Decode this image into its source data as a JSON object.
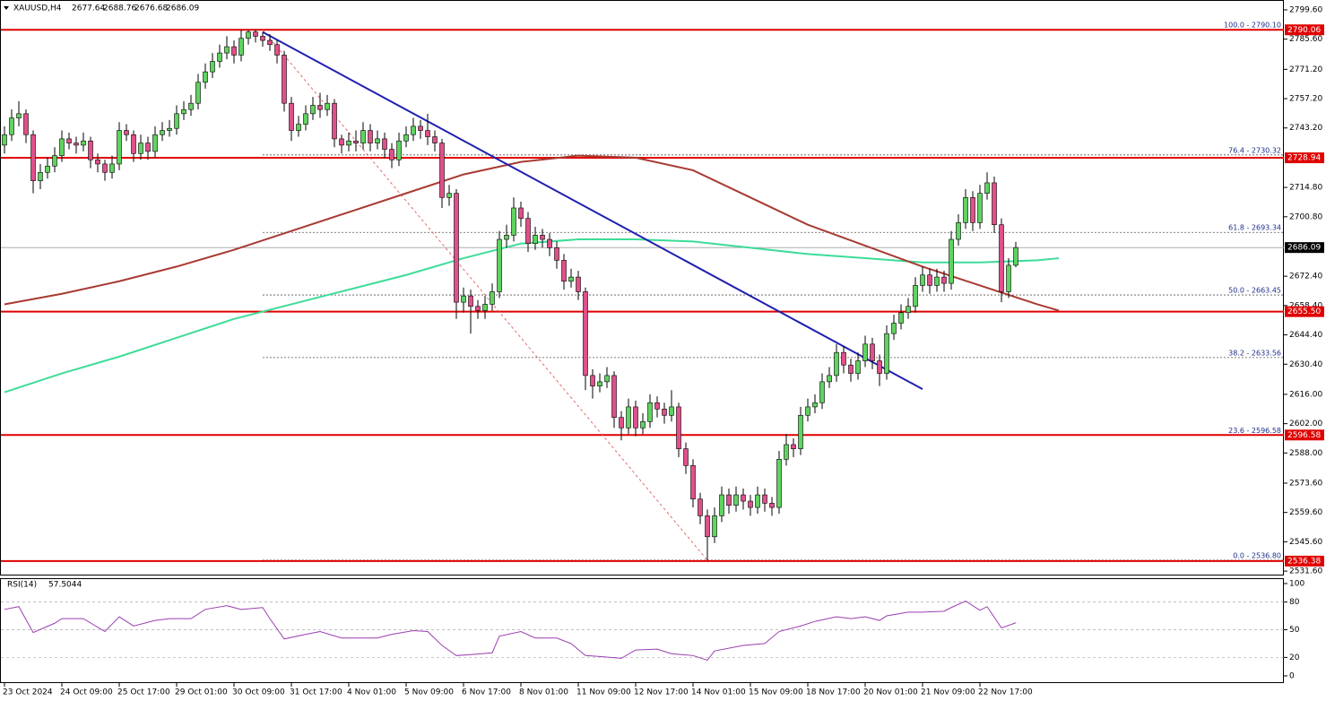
{
  "chart_data": {
    "type": "candlestick",
    "symbol": "XAUUSD,H4",
    "categories": [
      "23 Oct 2024",
      null,
      null,
      null,
      null,
      null,
      null,
      null,
      "24 Oct 09:00",
      null,
      null,
      null,
      null,
      null,
      null,
      null,
      "25 Oct 17:00",
      null,
      null,
      null,
      null,
      null,
      null,
      null,
      "29 Oct 01:00",
      null,
      null,
      null,
      null,
      null,
      null,
      null,
      "30 Oct 09:00",
      null,
      null,
      null,
      null,
      null,
      null,
      null,
      "31 Oct 17:00",
      null,
      null,
      null,
      null,
      null,
      null,
      null,
      "4 Nov 01:00",
      null,
      null,
      null,
      null,
      null,
      null,
      null,
      "5 Nov 09:00",
      null,
      null,
      null,
      null,
      null,
      null,
      null,
      "6 Nov 17:00",
      null,
      null,
      null,
      null,
      null,
      null,
      null,
      "8 Nov 01:00",
      null,
      null,
      null,
      null,
      null,
      null,
      null,
      "11 Nov 09:00",
      null,
      null,
      null,
      null,
      null,
      null,
      null,
      "12 Nov 17:00",
      null,
      null,
      null,
      null,
      null,
      null,
      null,
      "14 Nov 01:00",
      null,
      null,
      null,
      null,
      null,
      null,
      null,
      "15 Nov 09:00",
      null,
      null,
      null,
      null,
      null,
      null,
      null,
      "18 Nov 17:00",
      null,
      null,
      null,
      null,
      null,
      null,
      null,
      "20 Nov 01:00",
      null,
      null,
      null,
      null,
      null,
      null,
      null,
      "21 Nov 09:00",
      null,
      null,
      null,
      null,
      null,
      null,
      null,
      "22 Nov 17:00",
      null,
      null,
      null,
      null,
      null
    ],
    "ohlc": [
      [
        2735,
        2744,
        2731,
        2740
      ],
      [
        2740,
        2752,
        2737,
        2748
      ],
      [
        2748,
        2756,
        2744,
        2750
      ],
      [
        2750,
        2752,
        2736,
        2740
      ],
      [
        2740,
        2742,
        2712,
        2718
      ],
      [
        2718,
        2726,
        2714,
        2722
      ],
      [
        2722,
        2729,
        2719,
        2725
      ],
      [
        2725,
        2734,
        2722,
        2730
      ],
      [
        2730,
        2742,
        2727,
        2738
      ],
      [
        2738,
        2741,
        2733,
        2736
      ],
      [
        2736,
        2739,
        2731,
        2735
      ],
      [
        2735,
        2741,
        2732,
        2737
      ],
      [
        2737,
        2739,
        2724,
        2728
      ],
      [
        2728,
        2731,
        2722,
        2726
      ],
      [
        2726,
        2728,
        2718,
        2722
      ],
      [
        2722,
        2730,
        2719,
        2726
      ],
      [
        2726,
        2746,
        2723,
        2742
      ],
      [
        2742,
        2745,
        2737,
        2740
      ],
      [
        2740,
        2742,
        2727,
        2731
      ],
      [
        2731,
        2740,
        2728,
        2736
      ],
      [
        2736,
        2739,
        2728,
        2732
      ],
      [
        2732,
        2744,
        2729,
        2740
      ],
      [
        2740,
        2746,
        2737,
        2742
      ],
      [
        2742,
        2747,
        2739,
        2743
      ],
      [
        2743,
        2754,
        2740,
        2750
      ],
      [
        2750,
        2756,
        2747,
        2752
      ],
      [
        2752,
        2759,
        2749,
        2755
      ],
      [
        2755,
        2769,
        2752,
        2765
      ],
      [
        2765,
        2774,
        2762,
        2770
      ],
      [
        2770,
        2779,
        2767,
        2775
      ],
      [
        2775,
        2783,
        2772,
        2779
      ],
      [
        2779,
        2787,
        2776,
        2782
      ],
      [
        2782,
        2785,
        2774,
        2778
      ],
      [
        2778,
        2790,
        2775,
        2786
      ],
      [
        2786,
        2790,
        2783,
        2789
      ],
      [
        2789,
        2790.1,
        2784,
        2787
      ],
      [
        2787,
        2789,
        2782,
        2785
      ],
      [
        2785,
        2788,
        2780,
        2783
      ],
      [
        2783,
        2785,
        2774,
        2778
      ],
      [
        2778,
        2780,
        2751,
        2755
      ],
      [
        2755,
        2758,
        2737,
        2742
      ],
      [
        2742,
        2749,
        2739,
        2745
      ],
      [
        2745,
        2754,
        2742,
        2750
      ],
      [
        2750,
        2758,
        2747,
        2754
      ],
      [
        2754,
        2760,
        2748,
        2752
      ],
      [
        2752,
        2759,
        2749,
        2755
      ],
      [
        2755,
        2757,
        2734,
        2738
      ],
      [
        2738,
        2740,
        2731,
        2735
      ],
      [
        2735,
        2741,
        2732,
        2737
      ],
      [
        2737,
        2742,
        2732,
        2736
      ],
      [
        2736,
        2746,
        2733,
        2742
      ],
      [
        2742,
        2745,
        2732,
        2736
      ],
      [
        2736,
        2742,
        2733,
        2738
      ],
      [
        2738,
        2741,
        2729,
        2733
      ],
      [
        2733,
        2736,
        2724,
        2728
      ],
      [
        2728,
        2741,
        2725,
        2737
      ],
      [
        2737,
        2744,
        2734,
        2740
      ],
      [
        2740,
        2748,
        2737,
        2744
      ],
      [
        2744,
        2747,
        2738,
        2742
      ],
      [
        2742,
        2750,
        2735,
        2739
      ],
      [
        2739,
        2742,
        2732,
        2736
      ],
      [
        2736,
        2738,
        2705,
        2710
      ],
      [
        2710,
        2716,
        2706,
        2712
      ],
      [
        2712,
        2714,
        2652,
        2660
      ],
      [
        2660,
        2667,
        2655,
        2663
      ],
      [
        2663,
        2666,
        2645,
        2658
      ],
      [
        2658,
        2661,
        2652,
        2656
      ],
      [
        2656,
        2663,
        2652,
        2659
      ],
      [
        2659,
        2669,
        2656,
        2665
      ],
      [
        2665,
        2694,
        2662,
        2690
      ],
      [
        2690,
        2697,
        2686,
        2692
      ],
      [
        2692,
        2710,
        2689,
        2705
      ],
      [
        2705,
        2708,
        2696,
        2700
      ],
      [
        2700,
        2703,
        2684,
        2688
      ],
      [
        2688,
        2696,
        2685,
        2692
      ],
      [
        2692,
        2695,
        2686,
        2690
      ],
      [
        2690,
        2693,
        2682,
        2686
      ],
      [
        2686,
        2689,
        2676,
        2680
      ],
      [
        2680,
        2683,
        2666,
        2670
      ],
      [
        2670,
        2676,
        2667,
        2672
      ],
      [
        2672,
        2675,
        2661,
        2665
      ],
      [
        2665,
        2667,
        2618,
        2625
      ],
      [
        2625,
        2628,
        2614,
        2620
      ],
      [
        2620,
        2626,
        2617,
        2622
      ],
      [
        2622,
        2629,
        2619,
        2625
      ],
      [
        2625,
        2627,
        2600,
        2605
      ],
      [
        2605,
        2608,
        2594,
        2600
      ],
      [
        2600,
        2614,
        2597,
        2610
      ],
      [
        2610,
        2613,
        2596,
        2600
      ],
      [
        2600,
        2607,
        2597,
        2603
      ],
      [
        2603,
        2616,
        2600,
        2612
      ],
      [
        2612,
        2615,
        2605,
        2609
      ],
      [
        2609,
        2612,
        2602,
        2606
      ],
      [
        2606,
        2618,
        2603,
        2610
      ],
      [
        2610,
        2612,
        2586,
        2590
      ],
      [
        2590,
        2593,
        2578,
        2582
      ],
      [
        2582,
        2585,
        2562,
        2566
      ],
      [
        2566,
        2569,
        2554,
        2558
      ],
      [
        2558,
        2561,
        2536.8,
        2548
      ],
      [
        2548,
        2562,
        2545,
        2558
      ],
      [
        2558,
        2572,
        2555,
        2568
      ],
      [
        2568,
        2571,
        2559,
        2563
      ],
      [
        2563,
        2572,
        2560,
        2568
      ],
      [
        2568,
        2571,
        2561,
        2565
      ],
      [
        2565,
        2568,
        2558,
        2562
      ],
      [
        2562,
        2572,
        2559,
        2568
      ],
      [
        2568,
        2571,
        2560,
        2564
      ],
      [
        2564,
        2567,
        2558,
        2562
      ],
      [
        2562,
        2589,
        2559,
        2585
      ],
      [
        2585,
        2597,
        2582,
        2592
      ],
      [
        2592,
        2595,
        2586,
        2590
      ],
      [
        2590,
        2610,
        2587,
        2606
      ],
      [
        2606,
        2614,
        2603,
        2610
      ],
      [
        2610,
        2616,
        2607,
        2612
      ],
      [
        2612,
        2626,
        2609,
        2622
      ],
      [
        2622,
        2629,
        2619,
        2625
      ],
      [
        2625,
        2640,
        2622,
        2636
      ],
      [
        2636,
        2639,
        2626,
        2630
      ],
      [
        2630,
        2633,
        2622,
        2626
      ],
      [
        2626,
        2636,
        2623,
        2632
      ],
      [
        2632,
        2644,
        2629,
        2640
      ],
      [
        2640,
        2643,
        2628,
        2632
      ],
      [
        2632,
        2635,
        2620,
        2626
      ],
      [
        2626,
        2649,
        2623,
        2645
      ],
      [
        2645,
        2654,
        2642,
        2650
      ],
      [
        2650,
        2659,
        2647,
        2655
      ],
      [
        2655,
        2662,
        2652,
        2658
      ],
      [
        2658,
        2672,
        2655,
        2668
      ],
      [
        2668,
        2677,
        2665,
        2673
      ],
      [
        2673,
        2676,
        2664,
        2668
      ],
      [
        2668,
        2676,
        2665,
        2672
      ],
      [
        2672,
        2675,
        2665,
        2669
      ],
      [
        2669,
        2694,
        2666,
        2690
      ],
      [
        2690,
        2702,
        2687,
        2698
      ],
      [
        2698,
        2714,
        2695,
        2710
      ],
      [
        2710,
        2713,
        2694,
        2698
      ],
      [
        2698,
        2716,
        2695,
        2712
      ],
      [
        2712,
        2722,
        2709,
        2717
      ],
      [
        2717,
        2720,
        2693,
        2697
      ],
      [
        2697,
        2700,
        2660,
        2665
      ],
      [
        2665,
        2681,
        2662,
        2677.64
      ],
      [
        2677.64,
        2688.76,
        2676.68,
        2686.09
      ]
    ],
    "up_color": "#5fd35f",
    "down_color": "#e0508a",
    "ylim": [
      2529.5,
      2804.3
    ],
    "yticks": [
      {
        "value": 2799.6,
        "label": "2799.60"
      },
      {
        "value": 2785.6,
        "label": "2785.60"
      },
      {
        "value": 2771.2,
        "label": "2771.20"
      },
      {
        "value": 2757.2,
        "label": "2757.20"
      },
      {
        "value": 2743.2,
        "label": "2743.20"
      },
      {
        "value": 2714.8,
        "label": "2714.80"
      },
      {
        "value": 2700.8,
        "label": "2700.80"
      },
      {
        "value": 2672.4,
        "label": "2672.40"
      },
      {
        "value": 2658.4,
        "label": "2658.40"
      },
      {
        "value": 2644.4,
        "label": "2644.40"
      },
      {
        "value": 2630.4,
        "label": "2630.40"
      },
      {
        "value": 2616,
        "label": "2616.00"
      },
      {
        "value": 2602,
        "label": "2602.00"
      },
      {
        "value": 2588,
        "label": "2588.00"
      },
      {
        "value": 2573.6,
        "label": "2573.60"
      },
      {
        "value": 2559.6,
        "label": "2559.60"
      },
      {
        "value": 2545.6,
        "label": "2545.60"
      },
      {
        "value": 2531.6,
        "label": "2531.60"
      }
    ],
    "series": [
      {
        "color": "#3ddc97",
        "x": [
          0,
          8,
          16,
          24,
          32,
          40,
          48,
          56,
          64,
          72,
          80,
          88,
          96,
          104,
          112,
          120,
          128,
          136,
          144,
          147
        ],
        "values": [
          2617,
          2626,
          2634,
          2643,
          2652,
          2659,
          2666,
          2673,
          2681,
          2688,
          2690,
          2690,
          2689,
          2686,
          2683,
          2681,
          2679,
          2679,
          2680,
          2681
        ]
      },
      {
        "color": "#a83a32",
        "x": [
          0,
          8,
          16,
          24,
          32,
          40,
          48,
          56,
          64,
          72,
          80,
          88,
          96,
          104,
          112,
          120,
          128,
          136,
          144,
          147
        ],
        "values": [
          2659,
          2664,
          2670,
          2677,
          2685,
          2694,
          2703,
          2712,
          2721,
          2727,
          2730,
          2729,
          2723,
          2710,
          2697,
          2687,
          2677,
          2668,
          2659,
          2656
        ]
      }
    ],
    "trendline": {
      "color": "#1f1fb0",
      "x": [
        36,
        128
      ],
      "values": [
        2789,
        2618.5
      ]
    },
    "fib": {
      "color": "#e04848",
      "text_color": "#1c2f8c",
      "x": [
        36,
        98
      ],
      "values": [
        2790.1,
        2536.8
      ],
      "levels": [
        {
          "value": 2790.1,
          "label": "100.0 - 2790.10"
        },
        {
          "value": 2730.32,
          "label": "76.4 - 2730.32"
        },
        {
          "value": 2693.34,
          "label": "61.8 - 2693.34"
        },
        {
          "value": 2663.45,
          "label": "50.0 - 2663.45"
        },
        {
          "value": 2633.56,
          "label": "38.2 - 2633.56"
        },
        {
          "value": 2596.58,
          "label": "23.6 - 2596.58"
        },
        {
          "value": 2536.8,
          "label": "0.0 - 2536.80"
        }
      ]
    },
    "levels": {
      "color": "#e00000",
      "items": [
        {
          "value": 2790.06,
          "label": "2790.06"
        },
        {
          "value": 2728.94,
          "label": "2728.94"
        },
        {
          "value": 2655.5,
          "label": "2655.50"
        },
        {
          "value": 2596.58,
          "label": "2596.58"
        },
        {
          "value": 2536.38,
          "label": "2536.38"
        }
      ]
    },
    "last_price_color": "#a0a0a0",
    "rsi": {
      "title": "RSI(14)",
      "color": "#9b3fb0",
      "x": [
        0,
        2,
        4,
        7,
        8,
        11,
        14,
        16,
        18,
        21,
        23,
        26,
        28,
        31,
        33,
        36,
        37,
        39,
        42,
        44,
        47,
        49,
        52,
        54,
        57,
        59,
        61,
        63,
        65,
        68,
        69,
        72,
        74,
        77,
        79,
        81,
        83,
        86,
        88,
        91,
        93,
        96,
        98,
        99,
        103,
        106,
        108,
        111,
        113,
        116,
        118,
        120,
        122,
        123,
        126,
        128,
        131,
        132,
        134,
        136,
        137,
        139,
        141
      ],
      "values": [
        72,
        75,
        47,
        57,
        62,
        62,
        48,
        64,
        54,
        60,
        62,
        62,
        72,
        76,
        72,
        74,
        62,
        40,
        45,
        48,
        41,
        41,
        41,
        45,
        49,
        48,
        33,
        22,
        23,
        25,
        43,
        48,
        41,
        41,
        35,
        22,
        21,
        19,
        28,
        29,
        24,
        22,
        17,
        27,
        33,
        35,
        48,
        54,
        59,
        64,
        62,
        64,
        60,
        65,
        69,
        69,
        70,
        74,
        81,
        71,
        75,
        52,
        57.5044
      ],
      "ylim": [
        -7.8,
        105.8
      ],
      "yticks": [
        100,
        80,
        50,
        20,
        0
      ],
      "levels": [
        80,
        50,
        20
      ]
    }
  }
}
